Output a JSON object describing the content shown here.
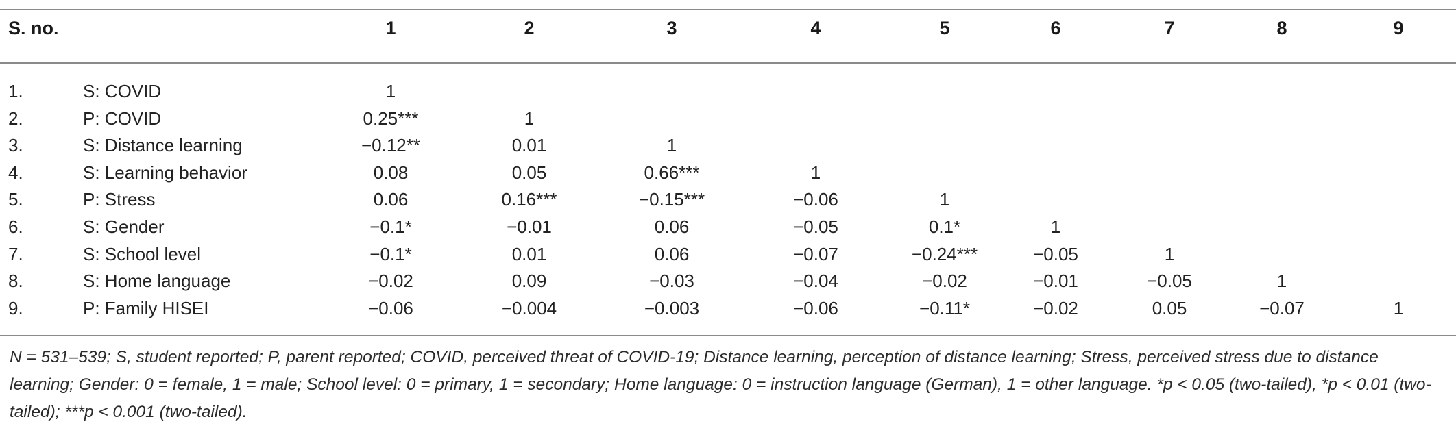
{
  "table": {
    "stub_header": "S. no.",
    "column_headers": [
      "1",
      "2",
      "3",
      "4",
      "5",
      "6",
      "7",
      "8",
      "9"
    ],
    "rows": [
      {
        "no": "1.",
        "label": "S: COVID",
        "values": [
          "1",
          "",
          "",
          "",
          "",
          "",
          "",
          "",
          ""
        ]
      },
      {
        "no": "2.",
        "label": "P: COVID",
        "values": [
          "0.25***",
          "1",
          "",
          "",
          "",
          "",
          "",
          "",
          ""
        ]
      },
      {
        "no": "3.",
        "label": "S: Distance learning",
        "values": [
          "−0.12**",
          "0.01",
          "1",
          "",
          "",
          "",
          "",
          "",
          ""
        ]
      },
      {
        "no": "4.",
        "label": "S: Learning behavior",
        "values": [
          "0.08",
          "0.05",
          "0.66***",
          "1",
          "",
          "",
          "",
          "",
          ""
        ]
      },
      {
        "no": "5.",
        "label": "P: Stress",
        "values": [
          "0.06",
          "0.16***",
          "−0.15***",
          "−0.06",
          "1",
          "",
          "",
          "",
          ""
        ]
      },
      {
        "no": "6.",
        "label": "S: Gender",
        "values": [
          "−0.1*",
          "−0.01",
          "0.06",
          "−0.05",
          "0.1*",
          "1",
          "",
          "",
          ""
        ]
      },
      {
        "no": "7.",
        "label": "S: School level",
        "values": [
          "−0.1*",
          "0.01",
          "0.06",
          "−0.07",
          "−0.24***",
          "−0.05",
          "1",
          "",
          ""
        ]
      },
      {
        "no": "8.",
        "label": "S: Home language",
        "values": [
          "−0.02",
          "0.09",
          "−0.03",
          "−0.04",
          "−0.02",
          "−0.01",
          "−0.05",
          "1",
          ""
        ]
      },
      {
        "no": "9.",
        "label": "P: Family HISEI",
        "values": [
          "−0.06",
          "−0.004",
          "−0.003",
          "−0.06",
          "−0.11*",
          "−0.02",
          "0.05",
          "−0.07",
          "1"
        ]
      }
    ],
    "footnote": "N = 531–539; S, student reported; P, parent reported; COVID, perceived threat of COVID-19; Distance learning, perception of distance learning; Stress, perceived stress due to distance learning; Gender: 0 = female, 1 = male; School level: 0 = primary, 1 = secondary; Home language: 0 = instruction language (German), 1 = other language. *p < 0.05 (two-tailed), *p < 0.01 (two-tailed); ***p < 0.001 (two-tailed)."
  }
}
